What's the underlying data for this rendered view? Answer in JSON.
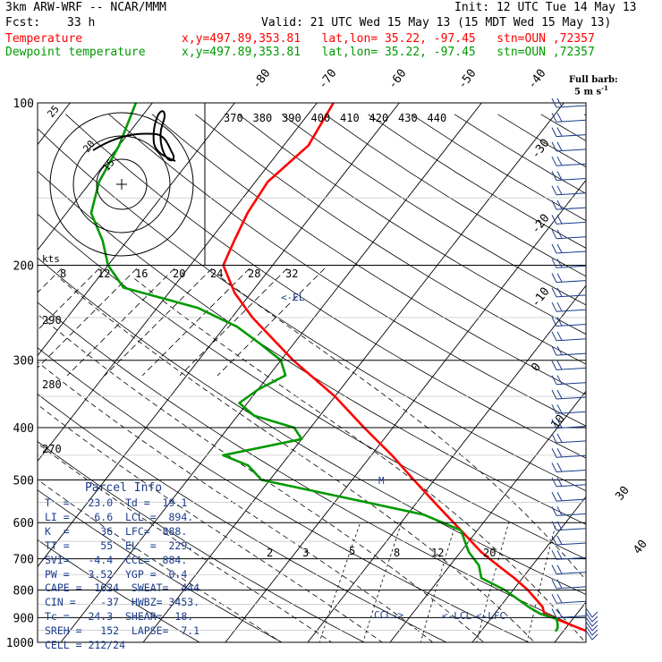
{
  "header": {
    "model": "3km ARW-WRF -- NCAR/MMM",
    "init": "Init: 12 UTC Tue 14 May 13",
    "fcst_label": "Fcst:",
    "fcst_value": "33 h",
    "valid": "Valid: 21 UTC Wed 15 May 13 (15 MDT Wed 15 May 13)",
    "temp_label": "Temperature",
    "temp_info": "x,y=497.89,353.81   lat,lon= 35.22, -97.45   stn=OUN ,72357",
    "dew_label": "Dewpoint temperature",
    "dew_info": "x,y=497.89,353.81   lat,lon= 35.22, -97.45   stn=OUN ,72357",
    "temp_color": "#ff0000",
    "dew_color": "#009900"
  },
  "barb_legend": {
    "line1": "Full barb:",
    "line2": "5 m s",
    "sup": "-1"
  },
  "parcel": {
    "title": "Parcel Info",
    "rows": [
      "T  =   23.0  Td =  19.1",
      "LI =   -6.6  LCL =  894.",
      "K  =     36  LFC=  888.",
      "TT =     55  EL  =  229.",
      "SVI=   -4.4  CCL=  884.",
      "PW =   3.52  YGP =  0.4",
      "CAPE =  1624  SWEAT=  444",
      "CIN =    -37  HWBZ= 3453.",
      "Tc =   24.3  SHEAR=  18.",
      "SREH =   152  LAPSE=  7.1",
      "CELL = 212/24"
    ]
  },
  "chart_data": {
    "type": "line",
    "title": "",
    "pressure_levels_hpa": [
      1000,
      900,
      800,
      700,
      600,
      500,
      400,
      300,
      200,
      100
    ],
    "pressure_labels": [
      "1000",
      "900",
      "800",
      "700",
      "600",
      "500",
      "400",
      "300",
      "200",
      "100"
    ],
    "isotherm_labels": [
      "-80",
      "-70",
      "-60",
      "-50",
      "-40",
      "-30",
      "-20",
      "-10",
      "0",
      "10",
      "30",
      "40"
    ],
    "theta_top_labels": [
      "370",
      "380",
      "390",
      "400",
      "410",
      "420",
      "430",
      "440"
    ],
    "theta_side_labels": [
      "290",
      "280",
      "270"
    ],
    "mixing_ratio_labels": [
      "2",
      "3",
      "5",
      "8",
      "12",
      "20"
    ],
    "hodo_speed_unit": "kts",
    "hodo_speed_labels": [
      "8",
      "12",
      "16",
      "20",
      "24",
      "28",
      "32"
    ],
    "hodo_ring_labels": [
      "25",
      "20",
      "15"
    ],
    "annotations": {
      "el": "<-EL",
      "ccl": "CCL->",
      "lcl": "<-LCL",
      "lfc": "<-LFC",
      "m": "M"
    },
    "series": [
      {
        "name": "Temperature",
        "color": "#ff0000",
        "pressure": [
          955,
          940,
          920,
          905,
          885,
          860,
          800,
          760,
          720,
          680,
          620,
          560,
          500,
          450,
          400,
          350,
          300,
          250,
          225,
          200,
          180,
          160,
          140,
          120,
          100
        ],
        "temperature": [
          23.0,
          21.5,
          19.5,
          18.0,
          16.0,
          15.2,
          11.8,
          9.0,
          5.8,
          2.5,
          -2.0,
          -7.0,
          -12.5,
          -17.5,
          -23.5,
          -30.0,
          -38.5,
          -47.5,
          -52.0,
          -56.0,
          -57.0,
          -58.0,
          -58.5,
          -57.0,
          -58.0
        ]
      },
      {
        "name": "Dewpoint temperature",
        "color": "#009900",
        "pressure": [
          955,
          940,
          920,
          905,
          885,
          860,
          800,
          760,
          720,
          680,
          620,
          580,
          540,
          500,
          470,
          450,
          420,
          400,
          380,
          360,
          340,
          320,
          300,
          280,
          260,
          240,
          220,
          200,
          180,
          160,
          140,
          120,
          100
        ],
        "temperature": [
          19.1,
          19.0,
          18.5,
          18.0,
          15.5,
          13.5,
          9.0,
          5.0,
          3.5,
          1.0,
          -2.0,
          -8.0,
          -19.0,
          -31.0,
          -34.0,
          -38.0,
          -30.0,
          -32.0,
          -38.0,
          -41.0,
          -40.0,
          -38.0,
          -40.0,
          -44.0,
          -48.5,
          -55.0,
          -66.0,
          -70.0,
          -73.0,
          -77.0,
          -79.0,
          -80.0,
          -82.0
        ]
      }
    ]
  }
}
